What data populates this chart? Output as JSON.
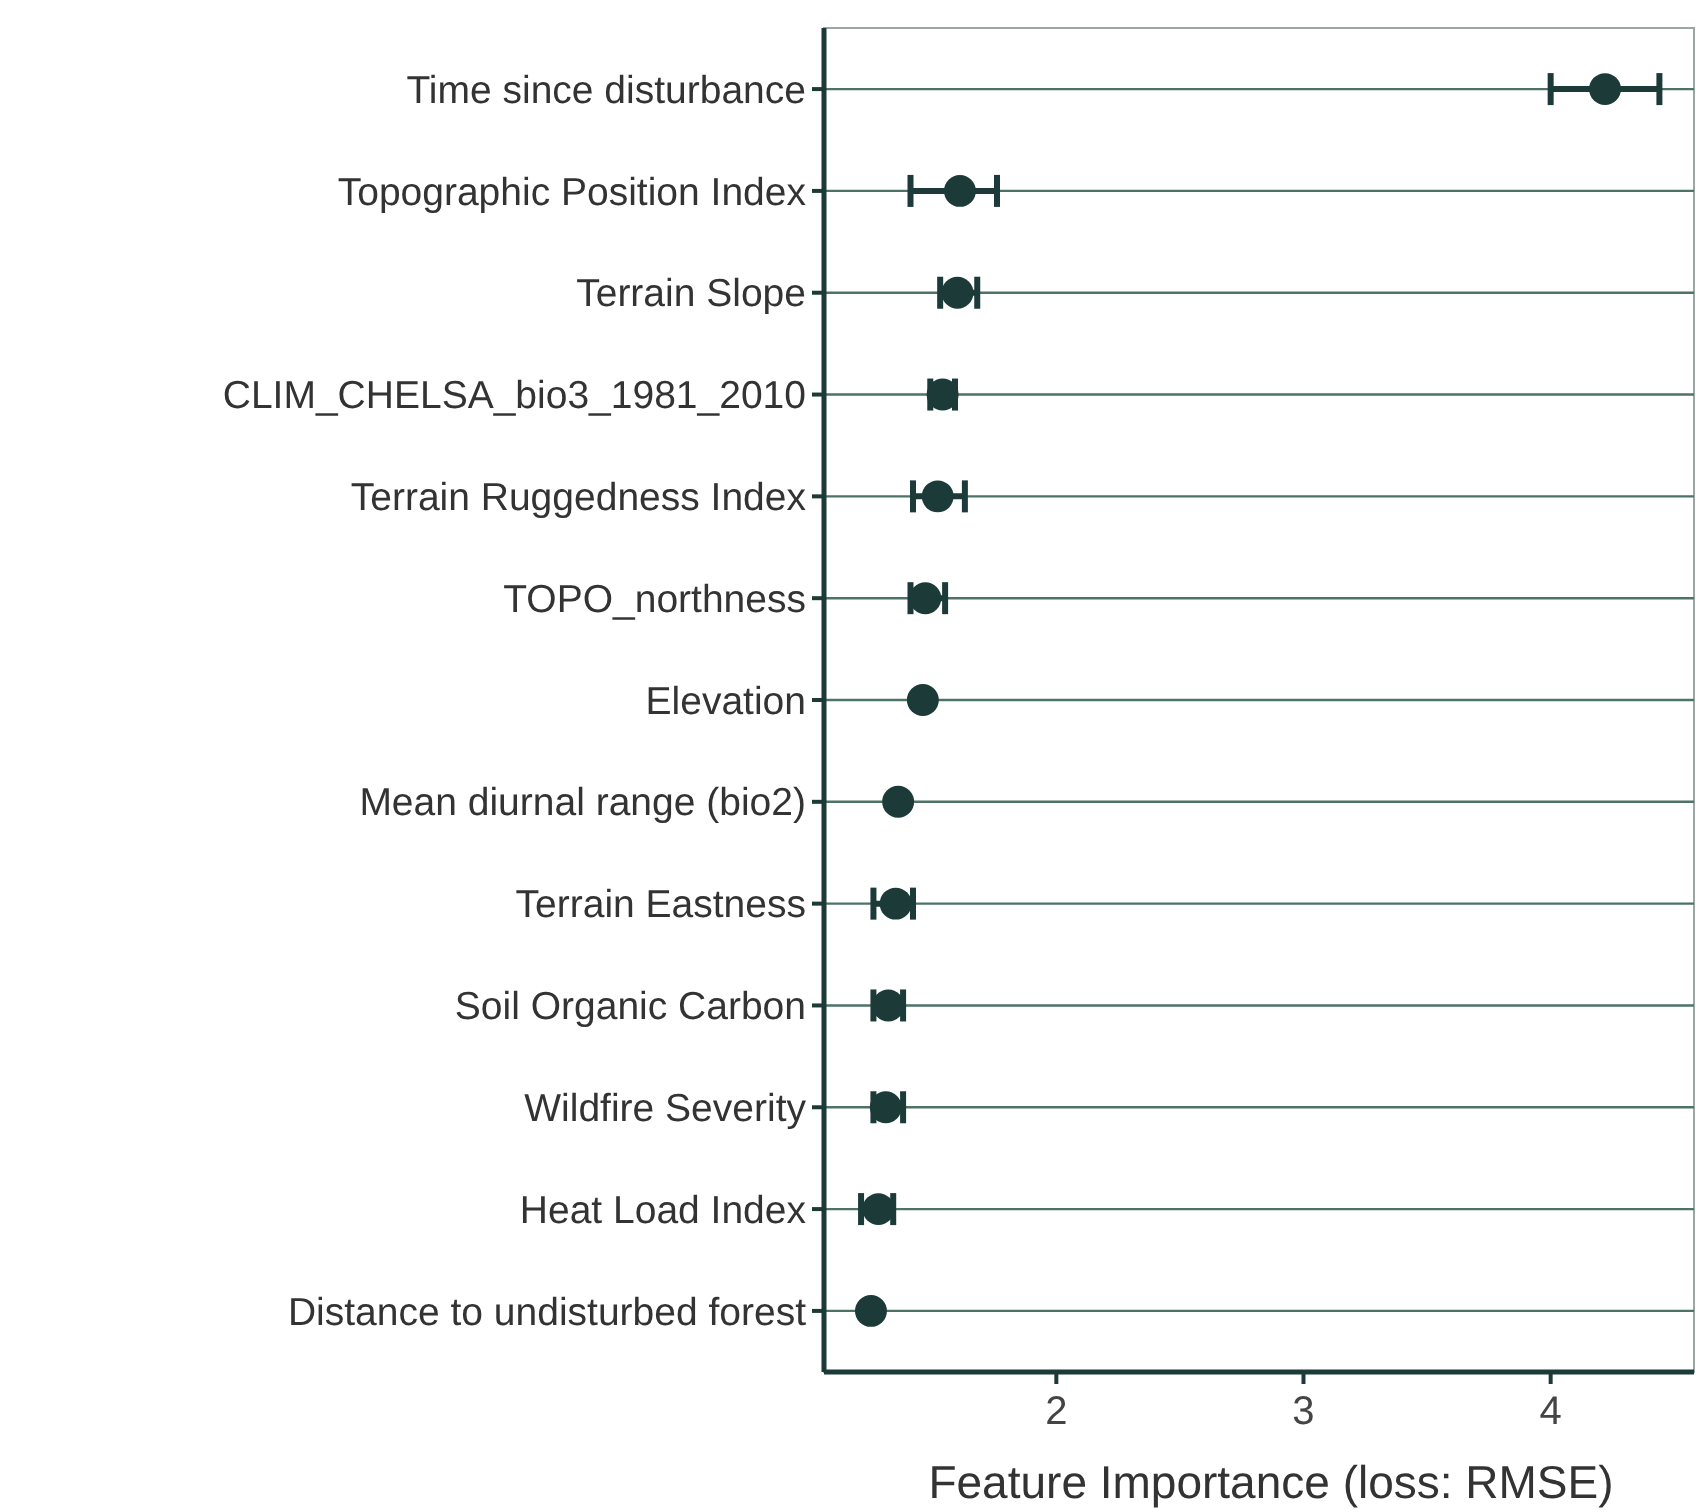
{
  "chart_data": {
    "type": "scatter",
    "orientation": "horizontal",
    "xlabel": "Feature Importance (loss: RMSE)",
    "categories": [
      "Time since disturbance",
      "Topographic Position Index",
      "Terrain Slope",
      "CLIM_CHELSA_bio3_1981_2010",
      "Terrain Ruggedness Index",
      "TOPO_northness",
      "Elevation",
      "Mean diurnal range (bio2)",
      "Terrain Eastness",
      "Soil Organic Carbon",
      "Wildfire Severity",
      "Heat Load Index",
      "Distance to undisturbed forest"
    ],
    "values": [
      4.22,
      1.61,
      1.6,
      1.54,
      1.52,
      1.47,
      1.46,
      1.36,
      1.35,
      1.32,
      1.31,
      1.28,
      1.25
    ],
    "errors": [
      [
        4.0,
        4.44
      ],
      [
        1.41,
        1.76
      ],
      [
        1.53,
        1.68
      ],
      [
        1.49,
        1.59
      ],
      [
        1.42,
        1.63
      ],
      [
        1.41,
        1.55
      ],
      null,
      null,
      [
        1.26,
        1.42
      ],
      [
        1.26,
        1.38
      ],
      [
        1.26,
        1.38
      ],
      [
        1.21,
        1.34
      ],
      null
    ],
    "color": "#1b3a38",
    "marker": "circle",
    "grid": "y",
    "xlim": [
      1.06,
      4.58
    ],
    "xticks": [
      2,
      3,
      4
    ]
  }
}
